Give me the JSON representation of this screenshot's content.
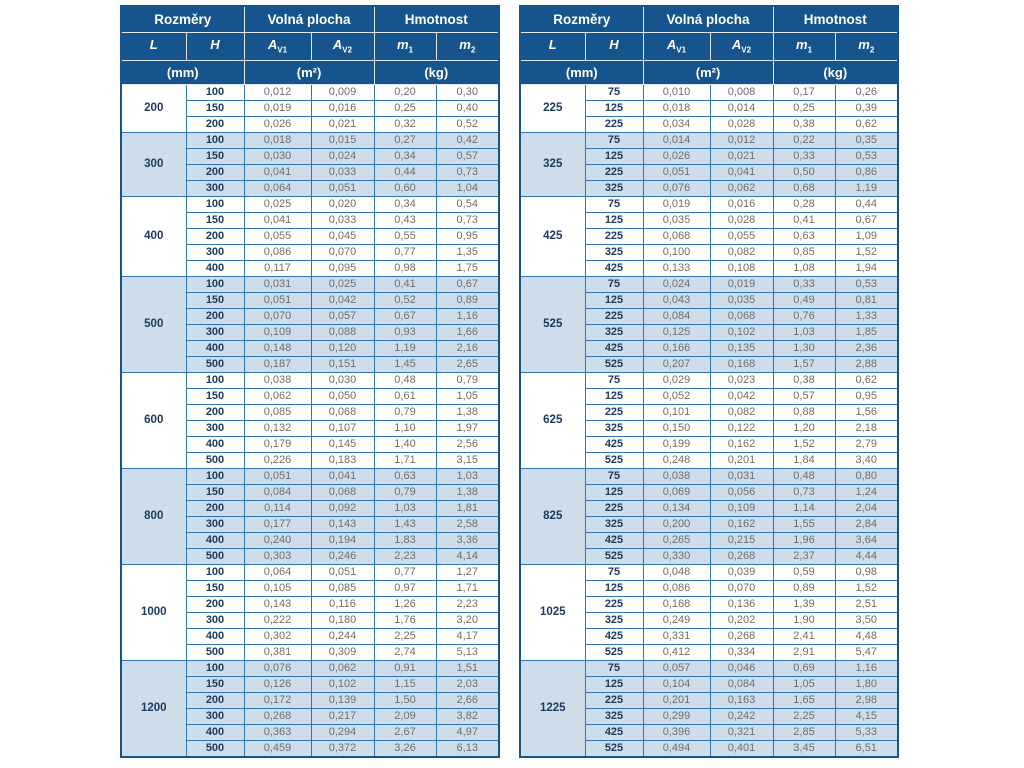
{
  "colors": {
    "header_bg": "#15548c",
    "grid_border": "#2e75b6",
    "group_shade": "#cdddea",
    "value_text": "#6d6e71",
    "dimension_text": "#1f3a63"
  },
  "header": {
    "groups": [
      {
        "label": "Rozměry"
      },
      {
        "label": "Volná plocha"
      },
      {
        "label": "Hmotnost"
      }
    ],
    "columns": [
      {
        "base": "L",
        "sub": ""
      },
      {
        "base": "H",
        "sub": ""
      },
      {
        "base": "A",
        "sub": "V1"
      },
      {
        "base": "A",
        "sub": "V2"
      },
      {
        "base": "m",
        "sub": "1"
      },
      {
        "base": "m",
        "sub": "2"
      }
    ],
    "units": [
      "(mm)",
      "(m²)",
      "(kg)"
    ]
  },
  "tables": [
    {
      "name": "left",
      "groups": [
        {
          "L": "200",
          "shaded": false,
          "rows": [
            [
              "100",
              "0,012",
              "0,009",
              "0,20",
              "0,30"
            ],
            [
              "150",
              "0,019",
              "0,016",
              "0,25",
              "0,40"
            ],
            [
              "200",
              "0,026",
              "0,021",
              "0,32",
              "0,52"
            ]
          ]
        },
        {
          "L": "300",
          "shaded": true,
          "rows": [
            [
              "100",
              "0,018",
              "0,015",
              "0,27",
              "0,42"
            ],
            [
              "150",
              "0,030",
              "0,024",
              "0,34",
              "0,57"
            ],
            [
              "200",
              "0,041",
              "0,033",
              "0,44",
              "0,73"
            ],
            [
              "300",
              "0,064",
              "0,051",
              "0,60",
              "1,04"
            ]
          ]
        },
        {
          "L": "400",
          "shaded": false,
          "rows": [
            [
              "100",
              "0,025",
              "0,020",
              "0,34",
              "0,54"
            ],
            [
              "150",
              "0,041",
              "0,033",
              "0,43",
              "0,73"
            ],
            [
              "200",
              "0,055",
              "0,045",
              "0,55",
              "0,95"
            ],
            [
              "300",
              "0,086",
              "0,070",
              "0,77",
              "1,35"
            ],
            [
              "400",
              "0,117",
              "0,095",
              "0,98",
              "1,75"
            ]
          ]
        },
        {
          "L": "500",
          "shaded": true,
          "rows": [
            [
              "100",
              "0,031",
              "0,025",
              "0,41",
              "0,67"
            ],
            [
              "150",
              "0,051",
              "0,042",
              "0,52",
              "0,89"
            ],
            [
              "200",
              "0,070",
              "0,057",
              "0,67",
              "1,16"
            ],
            [
              "300",
              "0,109",
              "0,088",
              "0,93",
              "1,66"
            ],
            [
              "400",
              "0,148",
              "0,120",
              "1,19",
              "2,16"
            ],
            [
              "500",
              "0,187",
              "0,151",
              "1,45",
              "2,65"
            ]
          ]
        },
        {
          "L": "600",
          "shaded": false,
          "rows": [
            [
              "100",
              "0,038",
              "0,030",
              "0,48",
              "0,79"
            ],
            [
              "150",
              "0,062",
              "0,050",
              "0,61",
              "1,05"
            ],
            [
              "200",
              "0,085",
              "0,068",
              "0,79",
              "1,38"
            ],
            [
              "300",
              "0,132",
              "0,107",
              "1,10",
              "1,97"
            ],
            [
              "400",
              "0,179",
              "0,145",
              "1,40",
              "2,56"
            ],
            [
              "500",
              "0,226",
              "0,183",
              "1,71",
              "3,15"
            ]
          ]
        },
        {
          "L": "800",
          "shaded": true,
          "rows": [
            [
              "100",
              "0,051",
              "0,041",
              "0,63",
              "1,03"
            ],
            [
              "150",
              "0,084",
              "0,068",
              "0,79",
              "1,38"
            ],
            [
              "200",
              "0,114",
              "0,092",
              "1,03",
              "1,81"
            ],
            [
              "300",
              "0,177",
              "0,143",
              "1,43",
              "2,58"
            ],
            [
              "400",
              "0,240",
              "0,194",
              "1,83",
              "3,36"
            ],
            [
              "500",
              "0,303",
              "0,246",
              "2,23",
              "4,14"
            ]
          ]
        },
        {
          "L": "1000",
          "shaded": false,
          "rows": [
            [
              "100",
              "0,064",
              "0,051",
              "0,77",
              "1,27"
            ],
            [
              "150",
              "0,105",
              "0,085",
              "0,97",
              "1,71"
            ],
            [
              "200",
              "0,143",
              "0,116",
              "1,26",
              "2,23"
            ],
            [
              "300",
              "0,222",
              "0,180",
              "1,76",
              "3,20"
            ],
            [
              "400",
              "0,302",
              "0,244",
              "2,25",
              "4,17"
            ],
            [
              "500",
              "0,381",
              "0,309",
              "2,74",
              "5,13"
            ]
          ]
        },
        {
          "L": "1200",
          "shaded": true,
          "rows": [
            [
              "100",
              "0,076",
              "0,062",
              "0,91",
              "1,51"
            ],
            [
              "150",
              "0,126",
              "0,102",
              "1,15",
              "2,03"
            ],
            [
              "200",
              "0,172",
              "0,139",
              "1,50",
              "2,66"
            ],
            [
              "300",
              "0,268",
              "0,217",
              "2,09",
              "3,82"
            ],
            [
              "400",
              "0,363",
              "0,294",
              "2,67",
              "4,97"
            ],
            [
              "500",
              "0,459",
              "0,372",
              "3,26",
              "6,13"
            ]
          ]
        }
      ]
    },
    {
      "name": "right",
      "groups": [
        {
          "L": "225",
          "shaded": false,
          "rows": [
            [
              "75",
              "0,010",
              "0,008",
              "0,17",
              "0,26"
            ],
            [
              "125",
              "0,018",
              "0,014",
              "0,25",
              "0,39"
            ],
            [
              "225",
              "0,034",
              "0,028",
              "0,38",
              "0,62"
            ]
          ]
        },
        {
          "L": "325",
          "shaded": true,
          "rows": [
            [
              "75",
              "0,014",
              "0,012",
              "0,22",
              "0,35"
            ],
            [
              "125",
              "0,026",
              "0,021",
              "0,33",
              "0,53"
            ],
            [
              "225",
              "0,051",
              "0,041",
              "0,50",
              "0,86"
            ],
            [
              "325",
              "0,076",
              "0,062",
              "0,68",
              "1,19"
            ]
          ]
        },
        {
          "L": "425",
          "shaded": false,
          "rows": [
            [
              "75",
              "0,019",
              "0,016",
              "0,28",
              "0,44"
            ],
            [
              "125",
              "0,035",
              "0,028",
              "0,41",
              "0,67"
            ],
            [
              "225",
              "0,068",
              "0,055",
              "0,63",
              "1,09"
            ],
            [
              "325",
              "0,100",
              "0,082",
              "0,85",
              "1,52"
            ],
            [
              "425",
              "0,133",
              "0,108",
              "1,08",
              "1,94"
            ]
          ]
        },
        {
          "L": "525",
          "shaded": true,
          "rows": [
            [
              "75",
              "0,024",
              "0,019",
              "0,33",
              "0,53"
            ],
            [
              "125",
              "0,043",
              "0,035",
              "0,49",
              "0,81"
            ],
            [
              "225",
              "0,084",
              "0,068",
              "0,76",
              "1,33"
            ],
            [
              "325",
              "0,125",
              "0,102",
              "1,03",
              "1,85"
            ],
            [
              "425",
              "0,166",
              "0,135",
              "1,30",
              "2,36"
            ],
            [
              "525",
              "0,207",
              "0,168",
              "1,57",
              "2,88"
            ]
          ]
        },
        {
          "L": "625",
          "shaded": false,
          "rows": [
            [
              "75",
              "0,029",
              "0,023",
              "0,38",
              "0,62"
            ],
            [
              "125",
              "0,052",
              "0,042",
              "0,57",
              "0,95"
            ],
            [
              "225",
              "0,101",
              "0,082",
              "0,88",
              "1,56"
            ],
            [
              "325",
              "0,150",
              "0,122",
              "1,20",
              "2,18"
            ],
            [
              "425",
              "0,199",
              "0,162",
              "1,52",
              "2,79"
            ],
            [
              "525",
              "0,248",
              "0,201",
              "1,84",
              "3,40"
            ]
          ]
        },
        {
          "L": "825",
          "shaded": true,
          "rows": [
            [
              "75",
              "0,038",
              "0,031",
              "0,48",
              "0,80"
            ],
            [
              "125",
              "0,069",
              "0,056",
              "0,73",
              "1,24"
            ],
            [
              "225",
              "0,134",
              "0,109",
              "1,14",
              "2,04"
            ],
            [
              "325",
              "0,200",
              "0,162",
              "1,55",
              "2,84"
            ],
            [
              "425",
              "0,265",
              "0,215",
              "1,96",
              "3,64"
            ],
            [
              "525",
              "0,330",
              "0,268",
              "2,37",
              "4,44"
            ]
          ]
        },
        {
          "L": "1025",
          "shaded": false,
          "rows": [
            [
              "75",
              "0,048",
              "0,039",
              "0,59",
              "0,98"
            ],
            [
              "125",
              "0,086",
              "0,070",
              "0,89",
              "1,52"
            ],
            [
              "225",
              "0,168",
              "0,136",
              "1,39",
              "2,51"
            ],
            [
              "325",
              "0,249",
              "0,202",
              "1,90",
              "3,50"
            ],
            [
              "425",
              "0,331",
              "0,268",
              "2,41",
              "4,48"
            ],
            [
              "525",
              "0,412",
              "0,334",
              "2,91",
              "5,47"
            ]
          ]
        },
        {
          "L": "1225",
          "shaded": true,
          "rows": [
            [
              "75",
              "0,057",
              "0,046",
              "0,69",
              "1,16"
            ],
            [
              "125",
              "0,104",
              "0,084",
              "1,05",
              "1,80"
            ],
            [
              "225",
              "0,201",
              "0,163",
              "1,65",
              "2,98"
            ],
            [
              "325",
              "0,299",
              "0,242",
              "2,25",
              "4,15"
            ],
            [
              "425",
              "0,396",
              "0,321",
              "2,85",
              "5,33"
            ],
            [
              "525",
              "0,494",
              "0,401",
              "3,45",
              "6,51"
            ]
          ]
        }
      ]
    }
  ]
}
